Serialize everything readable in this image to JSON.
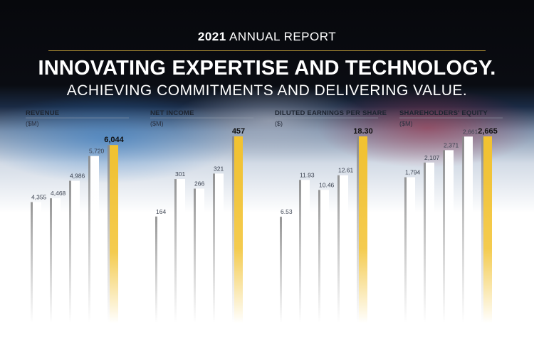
{
  "header": {
    "year": "2021",
    "report_label": "ANNUAL REPORT",
    "title": "INNOVATING EXPERTISE AND TECHNOLOGY.",
    "subtitle": "ACHIEVING COMMITMENTS AND DELIVERING VALUE."
  },
  "colors": {
    "highlight_bar": "#f2c230",
    "bar": "#ffffff",
    "bar_shadow": "#8a8a8a",
    "rule": "#c9a43a"
  },
  "chart_data": [
    {
      "type": "bar",
      "title": "REVENUE",
      "unit": "($M)",
      "values": [
        4355,
        4468,
        4986,
        5720,
        6044
      ],
      "labels": [
        "4,355",
        "4,468",
        "4,986",
        "5,720",
        "6,044"
      ],
      "ylim": [
        2600,
        6300
      ],
      "highlight_index": 4
    },
    {
      "type": "bar",
      "title": "NET INCOME",
      "unit": "($M)",
      "values": [
        164,
        301,
        266,
        321,
        457
      ],
      "labels": [
        "164",
        "301",
        "266",
        "321",
        "457"
      ],
      "ylim": [
        0,
        457
      ],
      "highlight_index": 4
    },
    {
      "type": "bar",
      "title": "DILUTED EARNINGS PER SHARE",
      "unit": "($)",
      "values": [
        6.53,
        11.93,
        10.46,
        12.61,
        18.3
      ],
      "labels": [
        "6.53",
        "11.93",
        "10.46",
        "12.61",
        "18.30"
      ],
      "ylim": [
        0,
        18.3
      ],
      "highlight_index": 4
    },
    {
      "type": "bar",
      "title": "SHAREHOLDERS' EQUITY",
      "unit": "($M)",
      "values": [
        1794,
        2107,
        2371,
        2661,
        2665
      ],
      "labels": [
        "1,794",
        "2,107",
        "2,371",
        "2,661",
        "2,665"
      ],
      "ylim": [
        0,
        2665
      ],
      "highlight_index": 4
    }
  ]
}
